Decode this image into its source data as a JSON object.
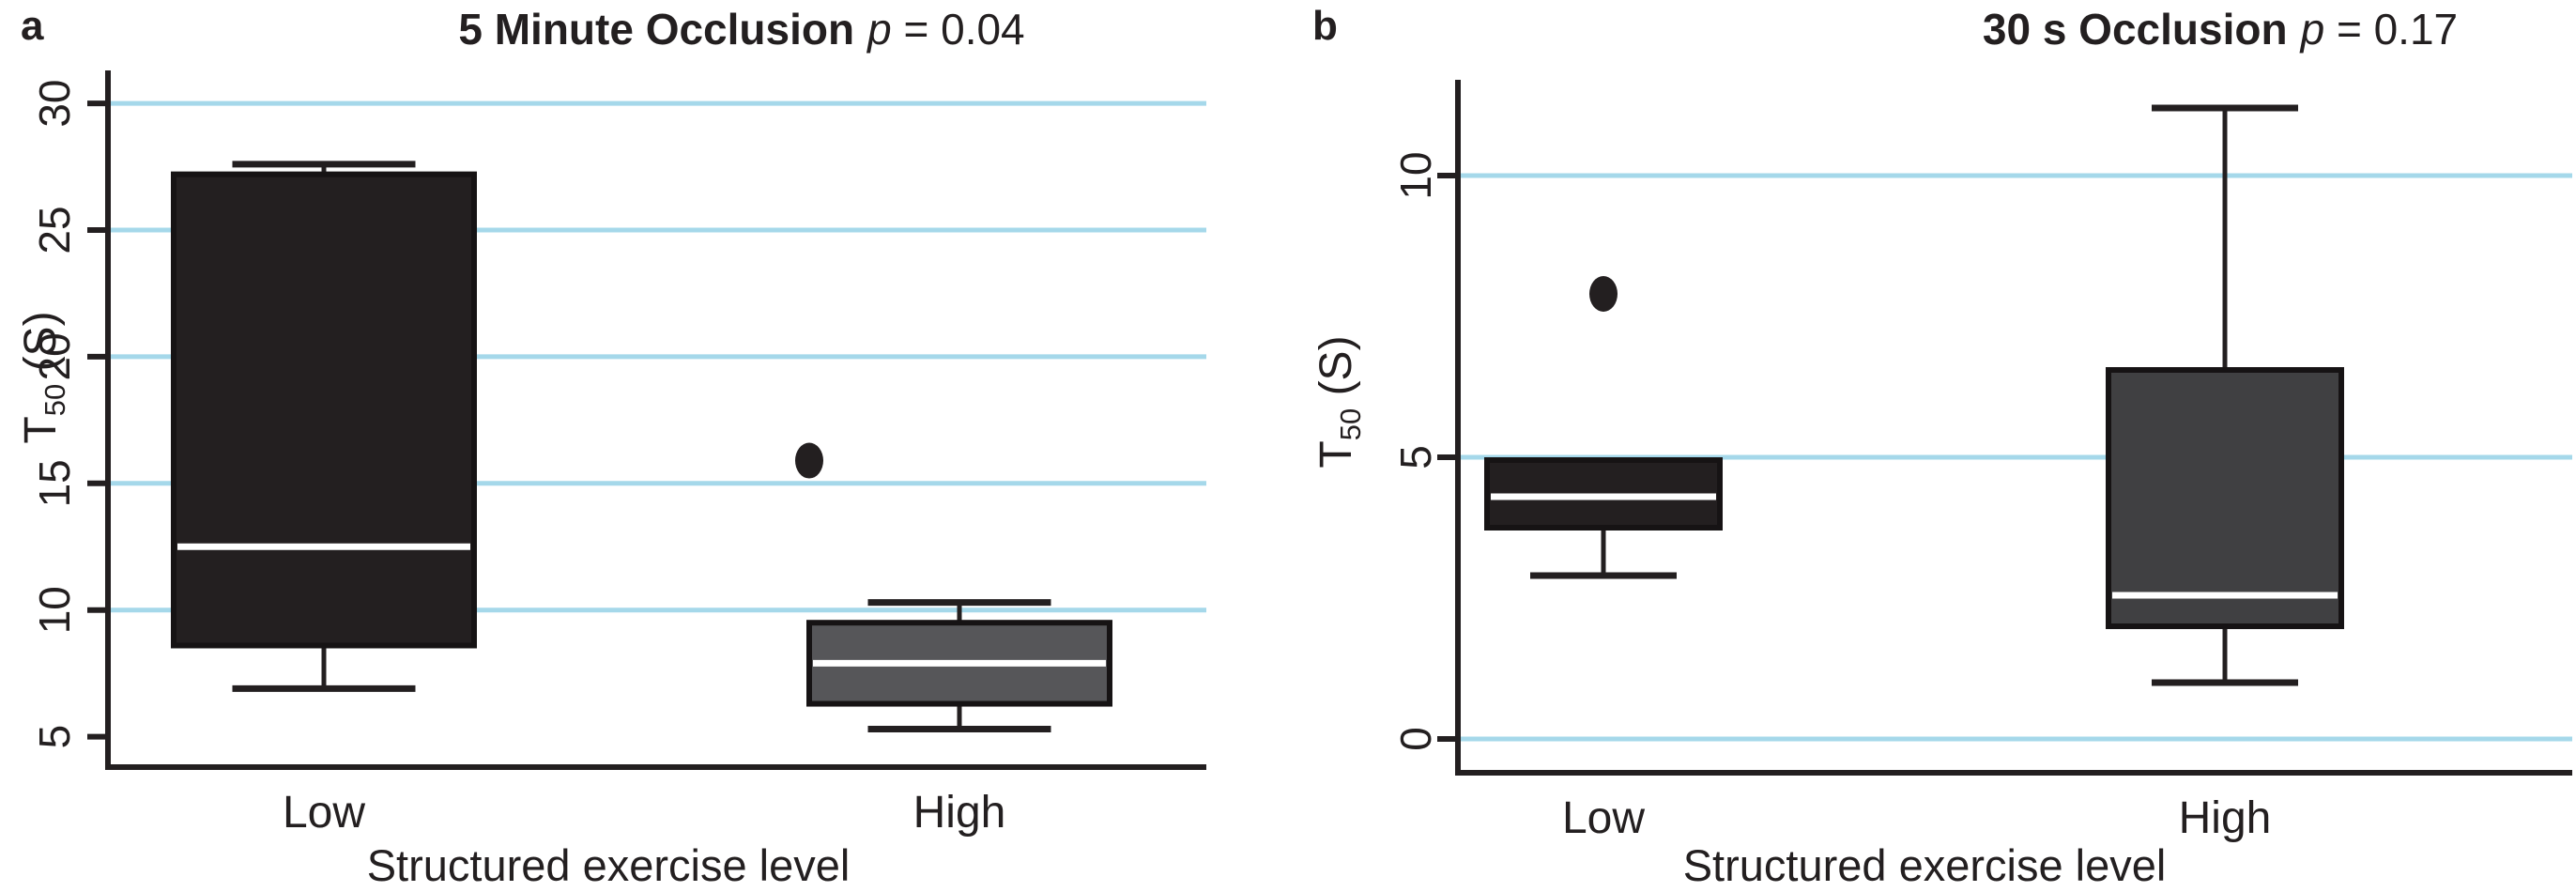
{
  "figure": {
    "background": "#ffffff",
    "colors": {
      "grid": "#a5d8ea",
      "axis": "#231f20",
      "box_border": "#161314",
      "median": "#ffffff",
      "text": "#231f20"
    }
  },
  "chart_data": [
    {
      "type": "box",
      "panel_label": "a",
      "title": {
        "main": "5 Minute Occlusion",
        "stat_var": "p",
        "stat_value": "= 0.04"
      },
      "ylabel": {
        "base": "T",
        "sub": "50",
        "unit": " (S)"
      },
      "xlabel": "Structured exercise level",
      "categories": [
        "Low",
        "High"
      ],
      "yticks": [
        5,
        10,
        15,
        20,
        25,
        30
      ],
      "gridlines": [
        10,
        15,
        20,
        25,
        30
      ],
      "ylim": [
        3.8,
        31.3
      ],
      "grid": true,
      "legend": "none",
      "groups": [
        {
          "label": "Low",
          "whisker_low": 6.9,
          "q1": 8.6,
          "median": 12.5,
          "q3": 27.2,
          "whisker_high": 27.6,
          "outliers": [],
          "fill": "#231f20"
        },
        {
          "label": "High",
          "whisker_low": 5.3,
          "q1": 6.3,
          "median": 7.9,
          "q3": 9.5,
          "whisker_high": 10.3,
          "outliers": [
            {
              "value": 15.9,
              "dx": -1.0
            }
          ],
          "fill": "#565659"
        }
      ]
    },
    {
      "type": "box",
      "panel_label": "b",
      "title": {
        "main": "30 s Occlusion",
        "stat_var": "p",
        "stat_value": "= 0.17"
      },
      "ylabel": {
        "base": "T",
        "sub": "50",
        "unit": " (S)"
      },
      "xlabel": "Structured exercise level",
      "categories": [
        "Low",
        "High"
      ],
      "yticks": [
        0,
        5,
        10
      ],
      "gridlines": [
        0,
        5,
        10
      ],
      "ylim": [
        -0.6,
        11.7
      ],
      "grid": true,
      "legend": "none",
      "groups": [
        {
          "label": "Low",
          "whisker_low": 2.9,
          "q1": 3.75,
          "median": 4.3,
          "q3": 4.95,
          "whisker_high": null,
          "outliers": [
            {
              "value": 7.9,
              "dx": 0
            }
          ],
          "fill": "#231f20"
        },
        {
          "label": "High",
          "whisker_low": 1.0,
          "q1": 2.0,
          "median": 2.55,
          "q3": 6.55,
          "whisker_high": 11.2,
          "outliers": [],
          "fill": "#404042"
        }
      ]
    }
  ]
}
